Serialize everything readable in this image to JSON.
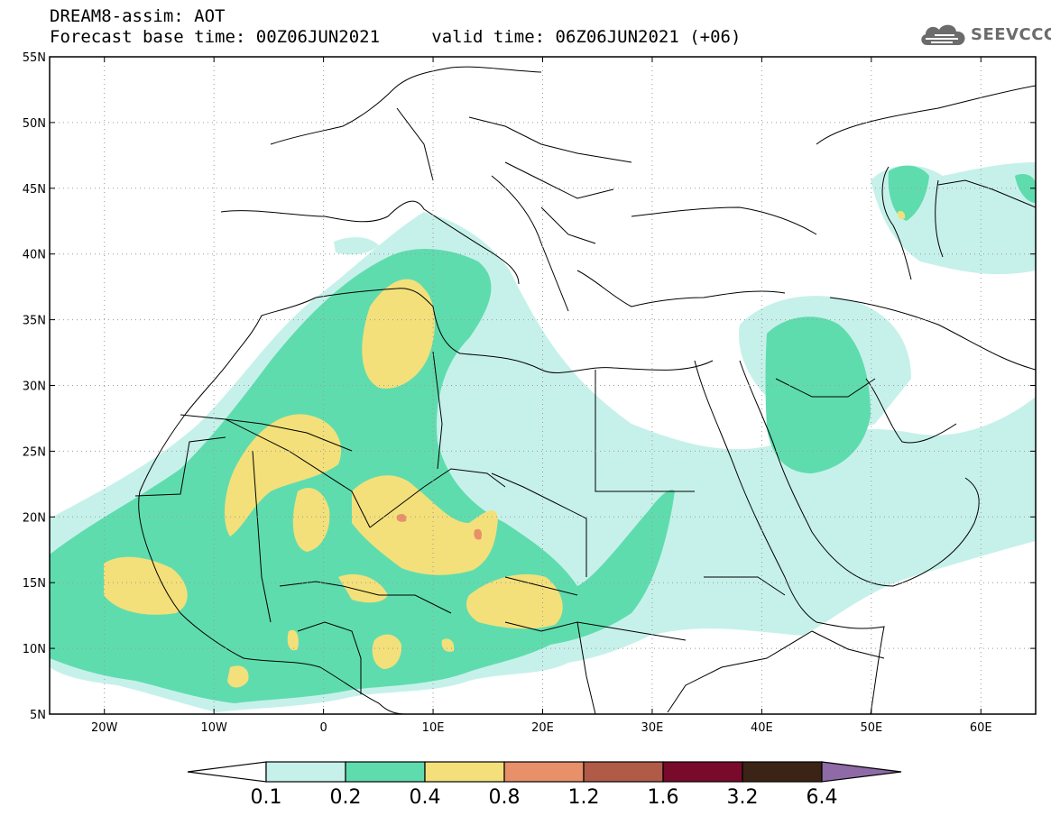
{
  "header": {
    "model_title": "DREAM8-assim: AOT",
    "forecast_line": "Forecast base time: 00Z06JUN2021",
    "valid_line": "valid time: 06Z06JUN2021 (+06)"
  },
  "logo": {
    "text": "SEEVCCC",
    "icon": "cloud-icon"
  },
  "map": {
    "lon_range": [
      -25,
      65
    ],
    "lat_range": [
      5,
      55
    ],
    "lon_ticks": [
      {
        "value": -20,
        "label": "20W"
      },
      {
        "value": -10,
        "label": "10W"
      },
      {
        "value": 0,
        "label": "0"
      },
      {
        "value": 10,
        "label": "10E"
      },
      {
        "value": 20,
        "label": "20E"
      },
      {
        "value": 30,
        "label": "30E"
      },
      {
        "value": 40,
        "label": "40E"
      },
      {
        "value": 50,
        "label": "50E"
      },
      {
        "value": 60,
        "label": "60E"
      }
    ],
    "lat_ticks": [
      {
        "value": 55,
        "label": "55N"
      },
      {
        "value": 50,
        "label": "50N"
      },
      {
        "value": 45,
        "label": "45N"
      },
      {
        "value": 40,
        "label": "40N"
      },
      {
        "value": 35,
        "label": "35N"
      },
      {
        "value": 30,
        "label": "30N"
      },
      {
        "value": 25,
        "label": "25N"
      },
      {
        "value": 20,
        "label": "20N"
      },
      {
        "value": 15,
        "label": "15N"
      },
      {
        "value": 10,
        "label": "10N"
      },
      {
        "value": 5,
        "label": "5N"
      }
    ],
    "grid": "dotted"
  },
  "colorbar": {
    "labels": [
      "0.1",
      "0.2",
      "0.4",
      "0.8",
      "1.2",
      "1.6",
      "3.2",
      "6.4"
    ],
    "colors": [
      "#ffffff",
      "#c6f1ea",
      "#5fdcae",
      "#f3e07a",
      "#e8906a",
      "#b05a48",
      "#7a0a2c",
      "#3b2415",
      "#8e6aa6"
    ]
  }
}
